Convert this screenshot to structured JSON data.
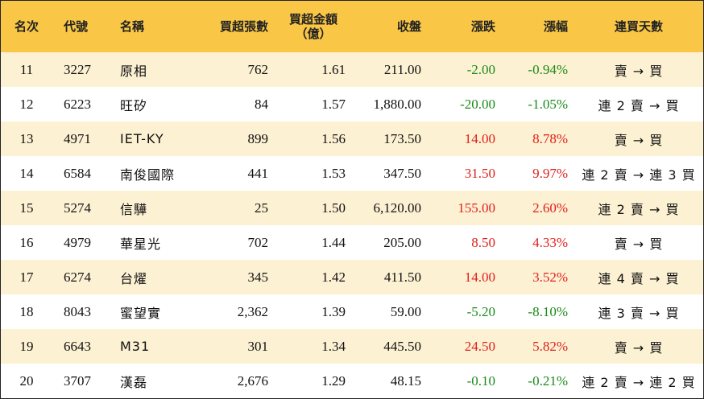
{
  "headers": {
    "rank": "名次",
    "code": "代號",
    "name": "名稱",
    "shares": "買超張數",
    "amount_line1": "買超金額",
    "amount_line2": "（億）",
    "close": "收盤",
    "change": "漲跌",
    "change_pct": "漲幅",
    "days": "連買天數"
  },
  "rows": [
    {
      "rank": "11",
      "code": "3227",
      "name": "原相",
      "shares": "762",
      "amount": "1.61",
      "close": "211.00",
      "change": "-2.00",
      "change_pct": "-0.94%",
      "days": "賣 → 買",
      "direction": "neg"
    },
    {
      "rank": "12",
      "code": "6223",
      "name": "旺矽",
      "shares": "84",
      "amount": "1.57",
      "close": "1,880.00",
      "change": "-20.00",
      "change_pct": "-1.05%",
      "days": "連 2 賣 → 買",
      "direction": "neg"
    },
    {
      "rank": "13",
      "code": "4971",
      "name": "IET-KY",
      "shares": "899",
      "amount": "1.56",
      "close": "173.50",
      "change": "14.00",
      "change_pct": "8.78%",
      "days": "賣 → 買",
      "direction": "pos"
    },
    {
      "rank": "14",
      "code": "6584",
      "name": "南俊國際",
      "shares": "441",
      "amount": "1.53",
      "close": "347.50",
      "change": "31.50",
      "change_pct": "9.97%",
      "days": "連 2 賣 → 連 3 買",
      "direction": "pos"
    },
    {
      "rank": "15",
      "code": "5274",
      "name": "信驊",
      "shares": "25",
      "amount": "1.50",
      "close": "6,120.00",
      "change": "155.00",
      "change_pct": "2.60%",
      "days": "連 2 賣 → 買",
      "direction": "pos"
    },
    {
      "rank": "16",
      "code": "4979",
      "name": "華星光",
      "shares": "702",
      "amount": "1.44",
      "close": "205.00",
      "change": "8.50",
      "change_pct": "4.33%",
      "days": "賣 → 買",
      "direction": "pos"
    },
    {
      "rank": "17",
      "code": "6274",
      "name": "台燿",
      "shares": "345",
      "amount": "1.42",
      "close": "411.50",
      "change": "14.00",
      "change_pct": "3.52%",
      "days": "連 4 賣 → 買",
      "direction": "pos"
    },
    {
      "rank": "18",
      "code": "8043",
      "name": "蜜望實",
      "shares": "2,362",
      "amount": "1.39",
      "close": "59.00",
      "change": "-5.20",
      "change_pct": "-8.10%",
      "days": "連 3 賣 → 買",
      "direction": "neg"
    },
    {
      "rank": "19",
      "code": "6643",
      "name": "M31",
      "shares": "301",
      "amount": "1.34",
      "close": "445.50",
      "change": "24.50",
      "change_pct": "5.82%",
      "days": "賣 → 買",
      "direction": "pos"
    },
    {
      "rank": "20",
      "code": "3707",
      "name": "漢磊",
      "shares": "2,676",
      "amount": "1.29",
      "close": "48.15",
      "change": "-0.10",
      "change_pct": "-0.21%",
      "days": "連 2 賣 → 連 2 買",
      "direction": "neg"
    }
  ]
}
